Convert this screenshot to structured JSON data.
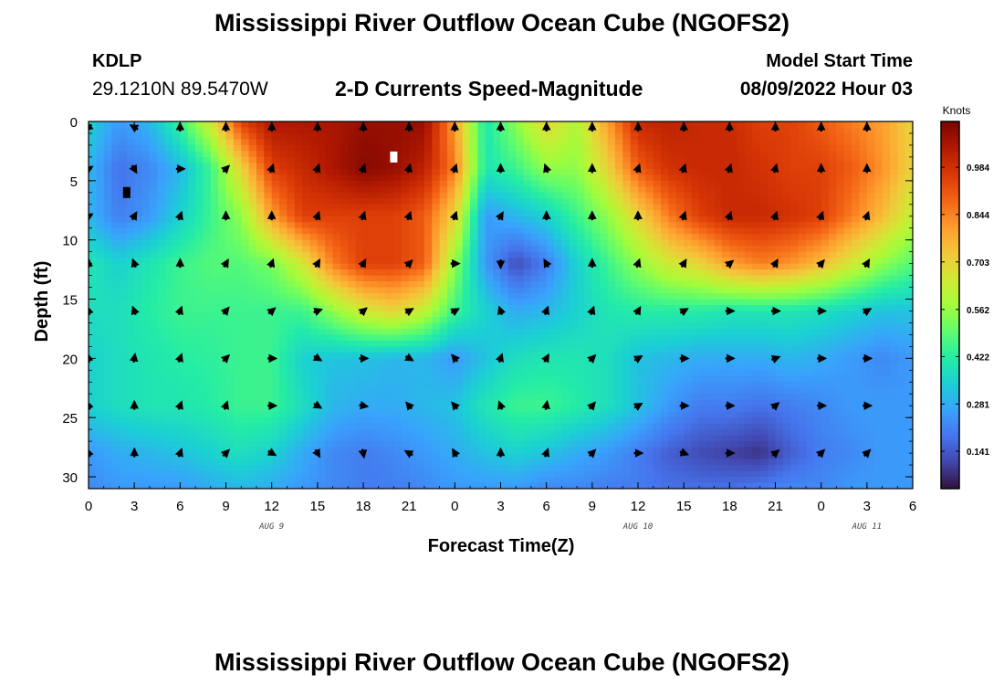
{
  "header": {
    "title": "Mississippi River Outflow Ocean Cube (NGOFS2)",
    "station_id": "KDLP",
    "station_coords": "29.1210N  89.5470W",
    "subtitle": "2-D Currents Speed-Magnitude",
    "model_label": "Model Start Time",
    "model_time": "08/09/2022 Hour 03"
  },
  "footer": {
    "title": "Mississippi River Outflow Ocean Cube (NGOFS2)"
  },
  "chart_data": {
    "type": "heatmap",
    "title": "2-D Currents Speed-Magnitude",
    "xlabel": "Forecast Time(Z)",
    "ylabel": "Depth (ft)",
    "x_tick_labels": [
      "0",
      "3",
      "6",
      "9",
      "12",
      "15",
      "18",
      "21",
      "0",
      "3",
      "6",
      "9",
      "12",
      "15",
      "18",
      "21",
      "0",
      "3",
      "6"
    ],
    "x_date_labels": [
      {
        "text": "AUG 9",
        "tick": 4
      },
      {
        "text": "AUG 10",
        "tick": 12
      },
      {
        "text": "AUG 11",
        "tick": 17
      }
    ],
    "xlim_hours": [
      0,
      54
    ],
    "y_ticks": [
      0,
      5,
      10,
      15,
      20,
      25,
      30
    ],
    "ylim": [
      0,
      31
    ],
    "y_inverted": true,
    "colorbar": {
      "unit": "Knots",
      "ticks": [
        "0.984",
        "0.844",
        "0.703",
        "0.562",
        "0.422",
        "0.281",
        "0.141"
      ],
      "tick_values": [
        0.984,
        0.844,
        0.703,
        0.562,
        0.422,
        0.281,
        0.141
      ],
      "range": [
        0.03,
        1.12
      ],
      "colors": [
        "#30123b",
        "#4145ab",
        "#4675ed",
        "#39a2fc",
        "#1bcfd4",
        "#24eca6",
        "#61fc6c",
        "#a4fc3b",
        "#d1e834",
        "#f3c63a",
        "#fe9b2d",
        "#f36315",
        "#d93806",
        "#b11901",
        "#7a0402"
      ]
    },
    "speed_field": {
      "hours": [
        0,
        2,
        4,
        6,
        8,
        10,
        12,
        14,
        16,
        18,
        20,
        22,
        24,
        26,
        28,
        30,
        32,
        34,
        36,
        38,
        40,
        42,
        44,
        46,
        48,
        50,
        52,
        54
      ],
      "depths_ft": [
        0,
        4,
        8,
        12,
        16,
        20,
        24,
        28,
        31
      ],
      "values_knots": [
        [
          0.35,
          0.25,
          0.3,
          0.45,
          0.65,
          0.95,
          1.05,
          1.05,
          1.05,
          1.08,
          1.08,
          1.08,
          0.8,
          0.4,
          0.55,
          0.7,
          0.6,
          0.8,
          1.0,
          1.02,
          1.0,
          1.0,
          0.95,
          0.95,
          0.9,
          0.85,
          0.8,
          0.7
        ],
        [
          0.3,
          0.18,
          0.22,
          0.3,
          0.45,
          0.7,
          0.95,
          1.0,
          1.05,
          1.1,
          1.08,
          1.02,
          0.85,
          0.4,
          0.45,
          0.55,
          0.55,
          0.7,
          0.9,
          0.98,
          1.0,
          1.0,
          0.98,
          0.95,
          0.95,
          0.9,
          0.82,
          0.7
        ],
        [
          0.3,
          0.2,
          0.25,
          0.35,
          0.45,
          0.55,
          0.8,
          0.95,
          0.95,
          0.95,
          0.95,
          0.9,
          0.7,
          0.25,
          0.3,
          0.35,
          0.45,
          0.55,
          0.7,
          0.85,
          0.95,
          1.0,
          1.0,
          0.98,
          0.95,
          0.85,
          0.75,
          0.62
        ],
        [
          0.4,
          0.35,
          0.4,
          0.45,
          0.48,
          0.48,
          0.52,
          0.65,
          0.85,
          0.95,
          0.95,
          0.9,
          0.55,
          0.25,
          0.12,
          0.2,
          0.35,
          0.45,
          0.55,
          0.65,
          0.7,
          0.8,
          0.85,
          0.82,
          0.75,
          0.65,
          0.55,
          0.48
        ],
        [
          0.38,
          0.38,
          0.42,
          0.45,
          0.45,
          0.45,
          0.45,
          0.45,
          0.55,
          0.65,
          0.7,
          0.62,
          0.45,
          0.35,
          0.28,
          0.3,
          0.35,
          0.4,
          0.42,
          0.42,
          0.42,
          0.4,
          0.4,
          0.4,
          0.38,
          0.35,
          0.32,
          0.32
        ],
        [
          0.35,
          0.38,
          0.4,
          0.42,
          0.43,
          0.45,
          0.45,
          0.35,
          0.32,
          0.32,
          0.3,
          0.3,
          0.25,
          0.32,
          0.38,
          0.4,
          0.4,
          0.38,
          0.32,
          0.3,
          0.28,
          0.28,
          0.28,
          0.3,
          0.28,
          0.25,
          0.22,
          0.25
        ],
        [
          0.35,
          0.38,
          0.4,
          0.4,
          0.42,
          0.45,
          0.45,
          0.38,
          0.3,
          0.28,
          0.28,
          0.3,
          0.32,
          0.4,
          0.45,
          0.45,
          0.42,
          0.38,
          0.32,
          0.25,
          0.2,
          0.2,
          0.18,
          0.2,
          0.22,
          0.25,
          0.25,
          0.25
        ],
        [
          0.25,
          0.28,
          0.3,
          0.32,
          0.35,
          0.38,
          0.35,
          0.28,
          0.22,
          0.2,
          0.22,
          0.25,
          0.28,
          0.32,
          0.35,
          0.32,
          0.28,
          0.25,
          0.2,
          0.15,
          0.12,
          0.1,
          0.08,
          0.15,
          0.2,
          0.22,
          0.25,
          0.25
        ],
        [
          0.22,
          0.25,
          0.25,
          0.25,
          0.28,
          0.3,
          0.28,
          0.25,
          0.22,
          0.2,
          0.2,
          0.22,
          0.25,
          0.25,
          0.25,
          0.22,
          0.22,
          0.2,
          0.2,
          0.18,
          0.18,
          0.18,
          0.2,
          0.22,
          0.22,
          0.25,
          0.25,
          0.25
        ]
      ]
    },
    "current_vectors": {
      "hours": [
        0,
        3,
        6,
        9,
        12,
        15,
        18,
        21,
        24,
        27,
        30,
        33,
        36,
        39,
        42,
        45,
        48,
        51
      ],
      "depths_ft": [
        0.5,
        4,
        8,
        12,
        16,
        20,
        24,
        28
      ],
      "direction_deg": [
        [
          230,
          300,
          0,
          0,
          0,
          0,
          0,
          0,
          0,
          0,
          0,
          0,
          0,
          0,
          0,
          0,
          0,
          0
        ],
        [
          60,
          150,
          90,
          45,
          20,
          20,
          20,
          15,
          20,
          0,
          340,
          0,
          20,
          20,
          20,
          15,
          0,
          0
        ],
        [
          60,
          30,
          20,
          0,
          0,
          20,
          20,
          20,
          20,
          30,
          0,
          0,
          0,
          20,
          20,
          20,
          20,
          20
        ],
        [
          0,
          340,
          0,
          30,
          20,
          30,
          30,
          45,
          90,
          180,
          330,
          0,
          20,
          30,
          50,
          30,
          40,
          30
        ],
        [
          345,
          340,
          20,
          40,
          50,
          70,
          50,
          60,
          60,
          340,
          20,
          20,
          30,
          60,
          90,
          90,
          90,
          60
        ],
        [
          350,
          10,
          20,
          45,
          90,
          120,
          90,
          120,
          320,
          20,
          30,
          45,
          60,
          90,
          90,
          70,
          90,
          90
        ],
        [
          340,
          0,
          20,
          20,
          90,
          120,
          100,
          320,
          320,
          340,
          10,
          40,
          60,
          90,
          90,
          50,
          90,
          90
        ],
        [
          340,
          0,
          20,
          45,
          120,
          150,
          170,
          300,
          330,
          0,
          20,
          45,
          90,
          110,
          90,
          50,
          45,
          45
        ]
      ]
    },
    "markers": [
      {
        "x_hours": 2.5,
        "depth_ft": 6,
        "color": "#000000"
      },
      {
        "x_hours": 20,
        "depth_ft": 3,
        "color": "#ffffff"
      }
    ]
  }
}
